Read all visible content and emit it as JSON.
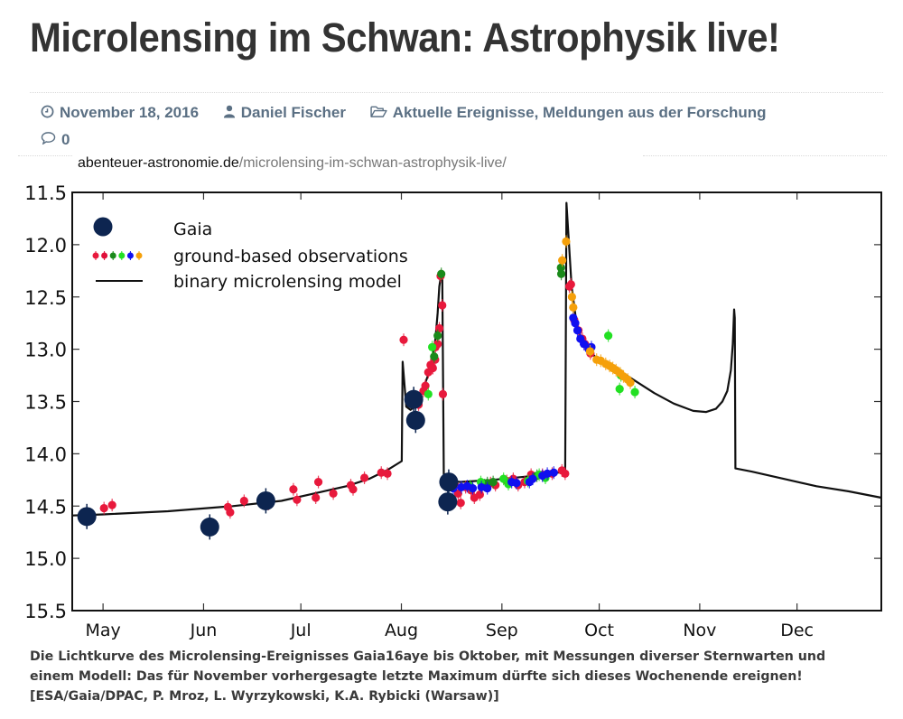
{
  "header": {
    "title": "Microlensing im Schwan: Astrophysik live!",
    "date": "November 18, 2016",
    "author": "Daniel Fischer",
    "categories": "Aktuelle Ereignisse, Meldungen aus der Forschung",
    "comments": "0",
    "url_domain": "abenteuer-astronomie.de",
    "url_path": "/microlensing-im-schwan-astrophysik-live/",
    "icons": {
      "date": "clock-icon",
      "author": "user-icon",
      "categories": "folder-open-icon",
      "comments": "comment-icon"
    },
    "meta_color": "#5a6f83"
  },
  "caption": {
    "line1": "Die Lichtkurve des Microlensing-Ereignisses Gaia16aye bis Oktober, mit Messungen diverser Sternwarten und",
    "line2": "einem Modell: Das für November vorhergesagte letzte Maximum dürfte sich dieses Wochenende ereignen!",
    "line3": "[ESA/Gaia/DPAC, P. Mroz, L. Wyrzykowski, K.A. Rybicki (Warsaw)]"
  },
  "chart_data": {
    "type": "scatter",
    "title": "",
    "xlabel": "",
    "ylabel": "",
    "x_unit": "days since May 1, 2016",
    "xlim": [
      -9.5,
      240
    ],
    "ylim": [
      15.5,
      11.5
    ],
    "y_inverted": true,
    "grid": false,
    "legend_position": "top-left",
    "x_ticks": [
      {
        "value": 0,
        "label": "May"
      },
      {
        "value": 31,
        "label": "Jun"
      },
      {
        "value": 61,
        "label": "Jul"
      },
      {
        "value": 92,
        "label": "Aug"
      },
      {
        "value": 123,
        "label": "Sep"
      },
      {
        "value": 153,
        "label": "Oct"
      },
      {
        "value": 184,
        "label": "Nov"
      },
      {
        "value": 214,
        "label": "Dec"
      }
    ],
    "y_ticks": [
      {
        "value": 11.5,
        "label": "11.5"
      },
      {
        "value": 12.0,
        "label": "12.0"
      },
      {
        "value": 12.5,
        "label": "12.5"
      },
      {
        "value": 13.0,
        "label": "13.0"
      },
      {
        "value": 13.5,
        "label": "13.5"
      },
      {
        "value": 14.0,
        "label": "14.0"
      },
      {
        "value": 14.5,
        "label": "14.5"
      },
      {
        "value": 15.0,
        "label": "15.0"
      },
      {
        "value": 15.5,
        "label": "15.5"
      }
    ],
    "legend": [
      {
        "label": "Gaia",
        "kind": "marker-large",
        "color": "#0d2550"
      },
      {
        "label": "ground-based observations",
        "kind": "marker-multi",
        "colors": [
          "#e8193c",
          "#e0103a",
          "#1a8a1a",
          "#22e022",
          "#1010f0",
          "#f5a00a"
        ]
      },
      {
        "label": "binary microlensing model",
        "kind": "line",
        "color": "#111111"
      }
    ],
    "series": [
      {
        "name": "Gaia",
        "color": "#0d2550",
        "points": [
          [
            -5,
            14.6
          ],
          [
            32.9,
            14.7
          ],
          [
            50.2,
            14.45
          ],
          [
            95.8,
            13.48
          ],
          [
            96.4,
            13.68
          ],
          [
            106.6,
            14.27
          ],
          [
            106.3,
            14.46
          ]
        ]
      },
      {
        "name": "ground-based (red)",
        "color": "#e8193c",
        "points": [
          [
            0.3,
            14.52
          ],
          [
            2.8,
            14.49
          ],
          [
            38.5,
            14.51
          ],
          [
            39.2,
            14.56
          ],
          [
            43.5,
            14.45
          ],
          [
            51,
            14.48
          ],
          [
            58.7,
            14.34
          ],
          [
            59.8,
            14.44
          ],
          [
            65.6,
            14.42
          ],
          [
            66.4,
            14.27
          ],
          [
            71,
            14.38
          ],
          [
            76.4,
            14.3
          ],
          [
            77.1,
            14.34
          ],
          [
            80.6,
            14.23
          ],
          [
            85.8,
            14.18
          ],
          [
            87.7,
            14.19
          ],
          [
            92.7,
            12.91
          ],
          [
            97.3,
            13.53
          ],
          [
            98.8,
            13.4
          ],
          [
            99.4,
            13.35
          ],
          [
            100.3,
            13.22
          ],
          [
            101,
            13.15
          ],
          [
            101.7,
            13.18
          ],
          [
            102.4,
            13.1
          ],
          [
            102.5,
            12.98
          ],
          [
            103.2,
            12.95
          ],
          [
            103.7,
            12.8
          ],
          [
            104.1,
            12.3
          ],
          [
            104.6,
            12.58
          ],
          [
            104.8,
            13.43
          ],
          [
            108.5,
            14.3
          ],
          [
            109.5,
            14.38
          ],
          [
            110.3,
            14.47
          ],
          [
            111.8,
            14.32
          ],
          [
            113.5,
            14.35
          ],
          [
            114.5,
            14.42
          ],
          [
            116.2,
            14.39
          ],
          [
            119.5,
            14.28
          ],
          [
            121,
            14.3
          ],
          [
            124.5,
            14.26
          ],
          [
            126.5,
            14.24
          ],
          [
            128,
            14.3
          ],
          [
            130,
            14.27
          ],
          [
            132,
            14.2
          ],
          [
            135.5,
            14.2
          ],
          [
            138.5,
            14.19
          ],
          [
            141.5,
            14.16
          ],
          [
            142.5,
            14.19
          ],
          [
            143.8,
            12.4
          ],
          [
            144.3,
            12.38
          ],
          [
            145.3,
            12.72
          ],
          [
            146.6,
            12.82
          ],
          [
            147.8,
            12.9
          ],
          [
            148.6,
            12.95
          ],
          [
            150.3,
            13.04
          ]
        ]
      },
      {
        "name": "ground-based (dark green)",
        "color": "#1a8a1a",
        "points": [
          [
            102.1,
            13.07
          ],
          [
            103.2,
            12.87
          ],
          [
            104.3,
            12.28
          ],
          [
            117.6,
            14.3
          ],
          [
            118.5,
            14.28
          ],
          [
            120.3,
            14.27
          ],
          [
            133.8,
            14.21
          ],
          [
            141.2,
            12.22
          ],
          [
            141.3,
            12.28
          ]
        ]
      },
      {
        "name": "ground-based (bright green)",
        "color": "#22e022",
        "points": [
          [
            100.3,
            13.43
          ],
          [
            101.5,
            12.98
          ],
          [
            113.2,
            14.31
          ],
          [
            116.5,
            14.27
          ],
          [
            123.5,
            14.24
          ],
          [
            125,
            14.29
          ],
          [
            131,
            14.26
          ],
          [
            134.5,
            14.2
          ],
          [
            136.4,
            14.23
          ],
          [
            155.8,
            12.87
          ],
          [
            159.7,
            13.25
          ],
          [
            159.3,
            13.38
          ],
          [
            164,
            13.41
          ]
        ]
      },
      {
        "name": "ground-based (blue)",
        "color": "#1010f0",
        "points": [
          [
            108,
            14.33
          ],
          [
            110.5,
            14.32
          ],
          [
            112.3,
            14.31
          ],
          [
            114,
            14.33
          ],
          [
            116.7,
            14.32
          ],
          [
            118.5,
            14.33
          ],
          [
            126,
            14.27
          ],
          [
            127.5,
            14.28
          ],
          [
            131.5,
            14.27
          ],
          [
            132.5,
            14.24
          ],
          [
            135.5,
            14.21
          ],
          [
            137,
            14.19
          ],
          [
            139,
            14.18
          ],
          [
            145,
            12.7
          ],
          [
            145.6,
            12.75
          ],
          [
            146.3,
            12.82
          ],
          [
            147.2,
            12.9
          ],
          [
            148.3,
            12.95
          ],
          [
            149.8,
            13.0
          ],
          [
            150.6,
            12.98
          ]
        ]
      },
      {
        "name": "ground-based (orange)",
        "color": "#f5a00a",
        "points": [
          [
            141.6,
            12.15
          ],
          [
            142.8,
            11.97
          ],
          [
            144.6,
            12.5
          ],
          [
            145,
            12.6
          ],
          [
            150.2,
            13.02
          ],
          [
            152.2,
            13.1
          ],
          [
            153.5,
            13.11
          ],
          [
            155,
            13.14
          ],
          [
            156.2,
            13.16
          ],
          [
            157.2,
            13.18
          ],
          [
            158.2,
            13.2
          ],
          [
            159.5,
            13.23
          ],
          [
            160.5,
            13.26
          ],
          [
            161.8,
            13.29
          ],
          [
            162.6,
            13.32
          ]
        ]
      },
      {
        "name": "binary microlensing model",
        "color": "#111111",
        "line": [
          [
            -9.5,
            14.59
          ],
          [
            0,
            14.58
          ],
          [
            20,
            14.55
          ],
          [
            40,
            14.5
          ],
          [
            55,
            14.45
          ],
          [
            65,
            14.38
          ],
          [
            75,
            14.31
          ],
          [
            82,
            14.24
          ],
          [
            88,
            14.15
          ],
          [
            92.1,
            14.07
          ],
          [
            92.4,
            13.12
          ],
          [
            93.5,
            13.55
          ],
          [
            94.8,
            13.58
          ],
          [
            96,
            13.55
          ],
          [
            98,
            13.43
          ],
          [
            100,
            13.27
          ],
          [
            101.5,
            13.1
          ],
          [
            102.5,
            12.9
          ],
          [
            103.2,
            12.65
          ],
          [
            103.7,
            12.4
          ],
          [
            104.2,
            12.3
          ],
          [
            104.6,
            12.32
          ],
          [
            105.1,
            14.24
          ],
          [
            110,
            14.27
          ],
          [
            120,
            14.25
          ],
          [
            130,
            14.22
          ],
          [
            138,
            14.19
          ],
          [
            142.5,
            14.17
          ],
          [
            142.9,
            11.6
          ],
          [
            143.6,
            11.95
          ],
          [
            144.5,
            12.4
          ],
          [
            146,
            12.75
          ],
          [
            148,
            12.95
          ],
          [
            152,
            13.08
          ],
          [
            158,
            13.18
          ],
          [
            164,
            13.3
          ],
          [
            170,
            13.42
          ],
          [
            176,
            13.52
          ],
          [
            182,
            13.59
          ],
          [
            186,
            13.6
          ],
          [
            189,
            13.57
          ],
          [
            191,
            13.5
          ],
          [
            192.5,
            13.4
          ],
          [
            193.6,
            13.2
          ],
          [
            194.2,
            12.95
          ],
          [
            194.6,
            12.62
          ],
          [
            194.8,
            12.7
          ],
          [
            195.0,
            14.14
          ],
          [
            200,
            14.17
          ],
          [
            210,
            14.24
          ],
          [
            220,
            14.31
          ],
          [
            230,
            14.36
          ],
          [
            240,
            14.42
          ]
        ]
      }
    ]
  }
}
